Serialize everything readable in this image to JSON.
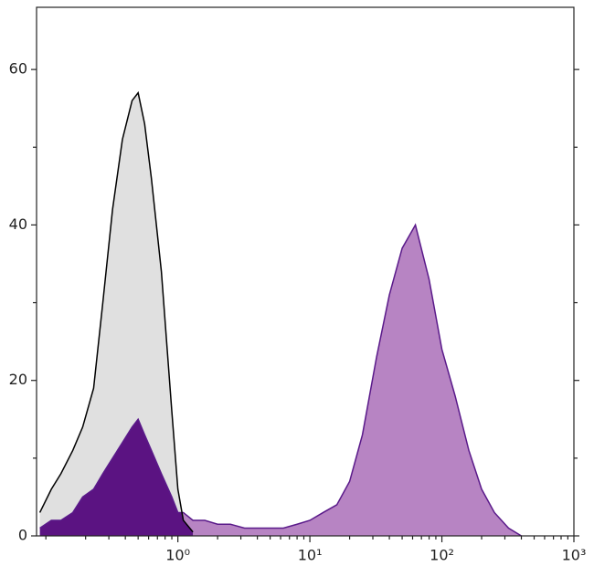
{
  "chart_data": {
    "type": "histogram-area",
    "x": [
      0.09,
      0.11,
      0.13,
      0.16,
      0.19,
      0.23,
      0.27,
      0.32,
      0.38,
      0.45,
      0.5,
      0.56,
      0.63,
      0.75,
      0.9,
      1.0,
      1.1,
      1.3,
      1.6,
      2,
      2.5,
      3.2,
      4,
      5,
      6.3,
      8,
      10,
      12.6,
      16,
      20,
      25,
      32,
      40,
      50,
      63,
      80,
      100,
      126,
      160,
      200,
      250,
      320,
      400
    ],
    "series": [
      {
        "color": "#000000",
        "fill": "#e0e0e0",
        "values": [
          3,
          6,
          8,
          11,
          14,
          19,
          30,
          42,
          51,
          56,
          57,
          53,
          46,
          34,
          16,
          6,
          2,
          0.5,
          null,
          null,
          null,
          null,
          null,
          null,
          null,
          null,
          null,
          null,
          null,
          null,
          null,
          null,
          null,
          null,
          null,
          null,
          null,
          null,
          null,
          null,
          null,
          null,
          null
        ]
      },
      {
        "color": "#5a1a8a",
        "fill": "#b784c3",
        "overlap_fill": "#5b1382",
        "values": [
          1,
          2,
          2,
          3,
          5,
          6,
          8,
          10,
          12,
          14,
          15,
          13,
          11,
          8,
          5,
          3,
          3,
          2,
          2,
          1.5,
          1.5,
          1,
          1,
          1,
          1,
          1.5,
          2,
          3,
          4,
          7,
          13,
          23,
          31,
          37,
          40,
          33,
          24,
          18,
          11,
          6,
          3,
          1,
          0
        ]
      }
    ],
    "log_x": true,
    "xlim": [
      0.085,
      1000
    ],
    "ylim": [
      0,
      68
    ],
    "xticks": [
      {
        "value": 1,
        "label": "10⁰"
      },
      {
        "value": 10,
        "label": "10¹"
      },
      {
        "value": 100,
        "label": "10²"
      },
      {
        "value": 1000,
        "label": "10³"
      }
    ],
    "xminor_ticks": [
      0.1,
      0.2,
      0.3,
      0.4,
      0.5,
      0.6,
      0.7,
      0.8,
      0.9,
      2,
      3,
      4,
      5,
      6,
      7,
      8,
      9,
      20,
      30,
      40,
      50,
      60,
      70,
      80,
      90,
      200,
      300,
      400,
      500,
      600,
      700,
      800,
      900
    ],
    "yticks": [
      0,
      20,
      40,
      60
    ],
    "yminor_ticks": [
      10,
      30,
      50
    ]
  }
}
